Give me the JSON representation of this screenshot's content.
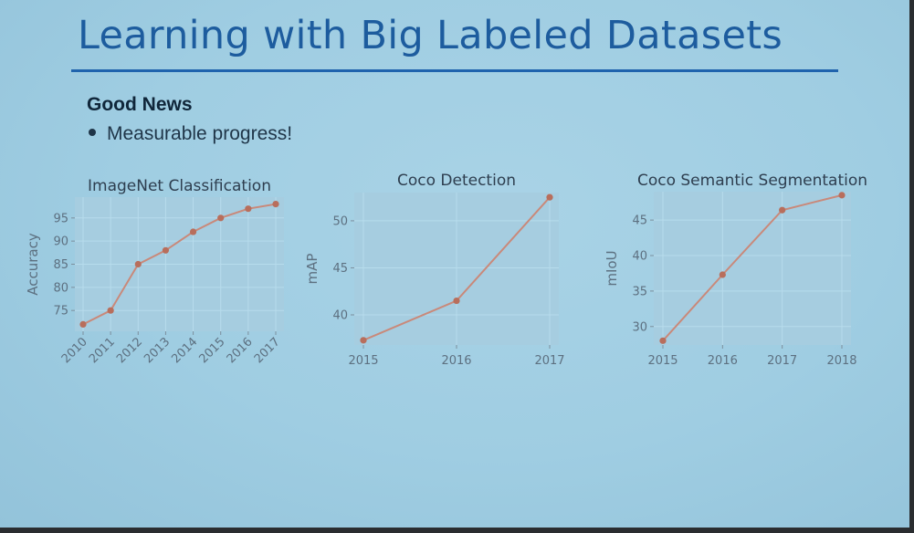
{
  "slide": {
    "title": "Learning with Big Labeled Datasets",
    "heading": "Good News",
    "bullet": "Measurable progress!"
  },
  "colors": {
    "line": "#c9897a",
    "plot_bg": "#a6cde0",
    "grid": "#b7dcec",
    "title": "#1d5c9e"
  },
  "chart_data": [
    {
      "type": "line",
      "title": "ImageNet Classification",
      "xlabel": "",
      "ylabel": "Accuracy",
      "x": [
        "2010",
        "2011",
        "2012",
        "2013",
        "2014",
        "2015",
        "2016",
        "2017"
      ],
      "values": [
        72,
        75,
        85,
        88,
        92,
        95,
        97,
        98
      ],
      "yticks": [
        75,
        80,
        85,
        90,
        95
      ],
      "ylim": [
        70.5,
        99.5
      ],
      "xtick_rotation": 45,
      "grid": true
    },
    {
      "type": "line",
      "title": "Coco Detection",
      "xlabel": "",
      "ylabel": "mAP",
      "x": [
        "2015",
        "2016",
        "2017"
      ],
      "values": [
        37.3,
        41.5,
        52.5
      ],
      "yticks": [
        40,
        45,
        50
      ],
      "ylim": [
        36.8,
        53.0
      ],
      "grid": true
    },
    {
      "type": "line",
      "title": "Coco Semantic Segmentation",
      "xlabel": "",
      "ylabel": "mIoU",
      "x": [
        "2015",
        "2016",
        "2017",
        "2018"
      ],
      "values": [
        28.0,
        37.3,
        46.4,
        48.5
      ],
      "yticks": [
        30,
        35,
        40,
        45
      ],
      "ylim": [
        27.4,
        49.0
      ],
      "grid": true
    }
  ]
}
